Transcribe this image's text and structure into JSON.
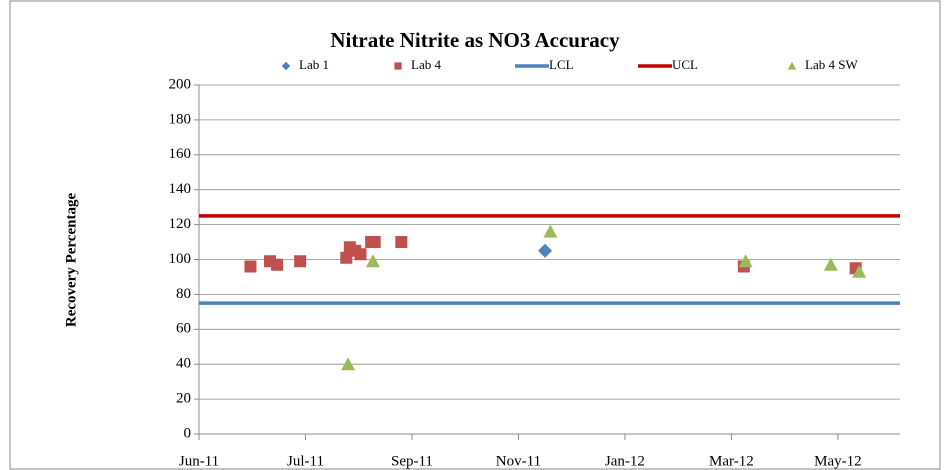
{
  "chart_data": {
    "type": "scatter",
    "title": "Nitrate Nitrite  as NO3 Accuracy",
    "y_label": "Recovery Percentage",
    "xlim": [
      40695,
      41090
    ],
    "xticks": [
      {
        "value": 40695,
        "label": "Jun-11"
      },
      {
        "value": 40755,
        "label": "Jul-11"
      },
      {
        "value": 40815,
        "label": "Sep-11"
      },
      {
        "value": 40875,
        "label": "Nov-11"
      },
      {
        "value": 40935,
        "label": "Jan-12"
      },
      {
        "value": 40995,
        "label": "Mar-12"
      },
      {
        "value": 41055,
        "label": "May-12"
      }
    ],
    "ylim": [
      0,
      200
    ],
    "yticks": [
      0,
      20,
      40,
      60,
      80,
      100,
      120,
      140,
      160,
      180,
      200
    ],
    "grid": true,
    "series": [
      {
        "name": "Lab 1",
        "color": "#4f81bd",
        "marker": "diamond",
        "x": [
          40890
        ],
        "values": [
          105
        ]
      },
      {
        "name": "Lab 4",
        "color": "#c0504d",
        "marker": "square",
        "x": [
          40724,
          40735,
          40739,
          40752,
          40778,
          40780,
          40783,
          40786,
          40792,
          40794,
          40809,
          41002,
          41065
        ],
        "values": [
          96,
          99,
          97,
          99,
          101,
          107,
          105,
          103,
          110,
          110,
          110,
          96,
          95
        ]
      },
      {
        "name": "LCL",
        "color": "#4f81bd",
        "marker": "hline",
        "value": 75
      },
      {
        "name": "UCL",
        "color": "#c00000",
        "marker": "hline",
        "value": 125
      },
      {
        "name": "Lab 4 SW",
        "color": "#9bbb59",
        "marker": "triangle",
        "x": [
          40779,
          40793,
          40893,
          41003,
          41051,
          41067
        ],
        "values": [
          40,
          99,
          116,
          99,
          97,
          93
        ]
      }
    ]
  }
}
